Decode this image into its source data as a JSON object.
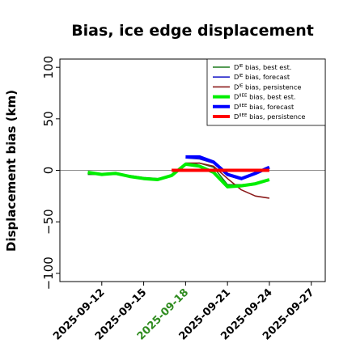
{
  "chart_data": {
    "type": "line",
    "title": "Bias, ice edge displacement",
    "xlabel": "",
    "ylabel": "Displacement bias (km)",
    "xlim": [
      "2025-09-09",
      "2025-09-28"
    ],
    "ylim": [
      -108,
      108
    ],
    "yticks": [
      100,
      50,
      0,
      -50,
      -100
    ],
    "ytick_labels": [
      "100",
      "50",
      "0",
      "−50",
      "−100"
    ],
    "xticks": [
      "2025-09-12",
      "2025-09-15",
      "2025-09-18",
      "2025-09-21",
      "2025-09-24",
      "2025-09-27"
    ],
    "highlighted_xtick": "2025-09-18",
    "highlight_color": "#2e8b1e",
    "reference_line": 0,
    "legend_position": "top-right",
    "series": [
      {
        "name": "D^IE bias, best est.",
        "color": "#1f7a1f",
        "width": 1.6,
        "x": [
          "2025-09-11",
          "2025-09-12",
          "2025-09-13",
          "2025-09-14",
          "2025-09-15",
          "2025-09-16",
          "2025-09-17",
          "2025-09-18",
          "2025-09-19",
          "2025-09-20",
          "2025-09-21",
          "2025-09-22",
          "2025-09-23",
          "2025-09-24"
        ],
        "y": [
          -4,
          -4,
          -4,
          -5,
          -7,
          -8,
          -6,
          5,
          7,
          3,
          -14,
          -14,
          -13,
          -10
        ]
      },
      {
        "name": "D^IE bias, forecast",
        "color": "#1f1fc8",
        "width": 1.6,
        "x": [
          "2025-09-18",
          "2025-09-19",
          "2025-09-20",
          "2025-09-21",
          "2025-09-22",
          "2025-09-23",
          "2025-09-24"
        ],
        "y": [
          12,
          11,
          7,
          -5,
          -9,
          -2,
          3
        ]
      },
      {
        "name": "D^IE bias, persistence",
        "color": "#8b1a1a",
        "width": 1.6,
        "x": [
          "2025-09-18",
          "2025-09-19",
          "2025-09-20",
          "2025-09-21",
          "2025-09-22",
          "2025-09-23",
          "2025-09-24"
        ],
        "y": [
          7,
          7,
          4,
          -8,
          -19,
          -25,
          -27
        ]
      },
      {
        "name": "D^IIEE bias, best est.",
        "color": "#00ee00",
        "width": 4,
        "x": [
          "2025-09-11",
          "2025-09-12",
          "2025-09-13",
          "2025-09-14",
          "2025-09-15",
          "2025-09-16",
          "2025-09-17",
          "2025-09-18",
          "2025-09-19",
          "2025-09-20",
          "2025-09-21",
          "2025-09-22",
          "2025-09-23",
          "2025-09-24"
        ],
        "y": [
          -2,
          -4,
          -3,
          -6,
          -8,
          -9,
          -5,
          6,
          4,
          -2,
          -16,
          -15,
          -13,
          -9
        ]
      },
      {
        "name": "D^IIEE bias, forecast",
        "color": "#0000ff",
        "width": 4,
        "x": [
          "2025-09-18",
          "2025-09-19",
          "2025-09-20",
          "2025-09-21",
          "2025-09-22",
          "2025-09-23",
          "2025-09-24"
        ],
        "y": [
          13,
          13,
          8,
          -4,
          -8,
          -3,
          3
        ]
      },
      {
        "name": "D^IIEE bias, persistence",
        "color": "#ff0000",
        "width": 4,
        "x": [
          "2025-09-17",
          "2025-09-18",
          "2025-09-19",
          "2025-09-20",
          "2025-09-21",
          "2025-09-22",
          "2025-09-23",
          "2025-09-24"
        ],
        "y": [
          0,
          0,
          0,
          0,
          0,
          0,
          0,
          0
        ]
      }
    ],
    "legend": [
      {
        "prefix": "D",
        "sup": "IE",
        "text": " bias, best est."
      },
      {
        "prefix": "D",
        "sup": "IE",
        "text": " bias, forecast"
      },
      {
        "prefix": "D",
        "sup": "IE",
        "text": " bias, persistence"
      },
      {
        "prefix": "D",
        "sup": "IIEE",
        "text": " bias, best est."
      },
      {
        "prefix": "D",
        "sup": "IIEE",
        "text": " bias, forecast"
      },
      {
        "prefix": "D",
        "sup": "IIEE",
        "text": " bias, persistence"
      }
    ]
  }
}
